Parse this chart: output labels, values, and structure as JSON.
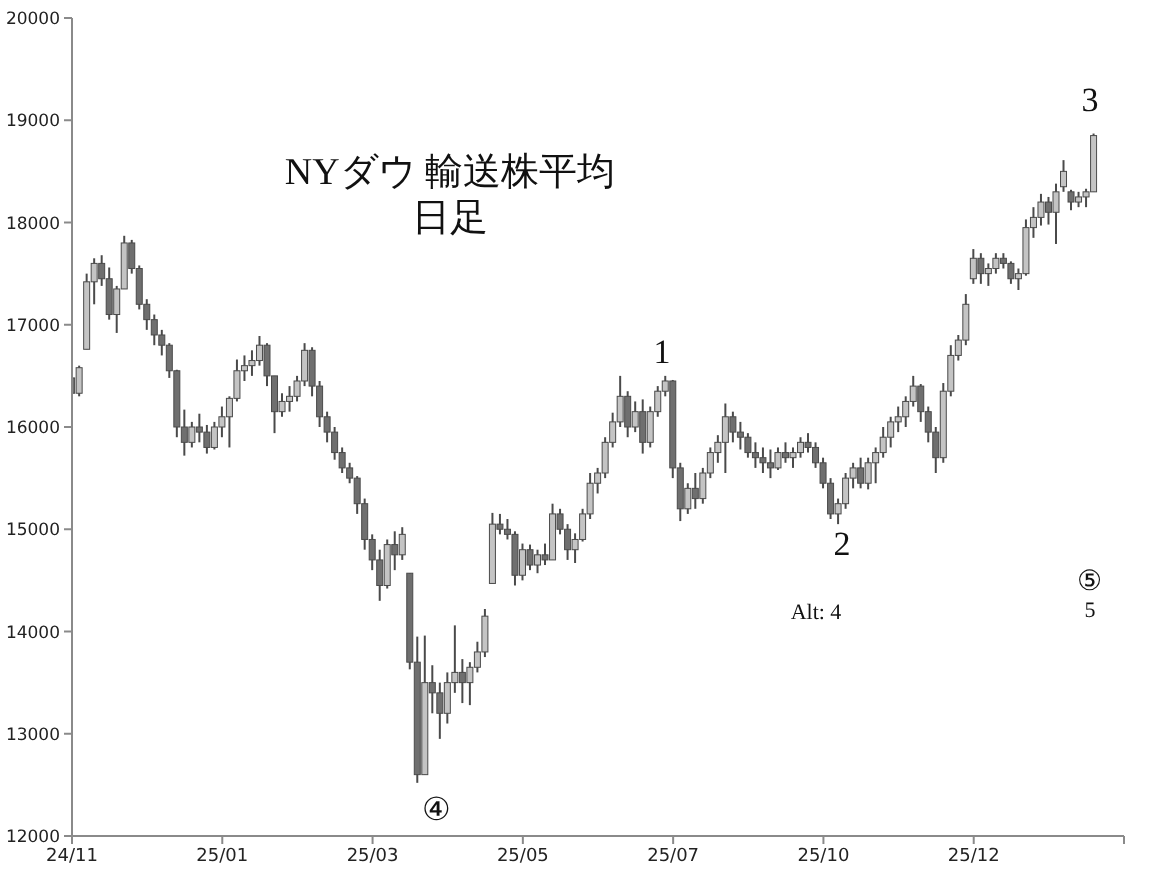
{
  "chart_data": {
    "type": "candlestick",
    "title": "NYダウ 輸送株平均",
    "subtitle": "日足",
    "categories": [
      "24/11",
      null,
      null,
      null,
      null,
      null,
      null,
      null,
      null,
      null,
      null,
      null,
      null,
      null,
      null,
      null,
      null,
      null,
      null,
      null,
      "25/01",
      null,
      null,
      null,
      null,
      null,
      null,
      null,
      null,
      null,
      null,
      null,
      null,
      null,
      null,
      null,
      null,
      null,
      null,
      null,
      "25/03",
      null,
      null,
      null,
      null,
      null,
      null,
      null,
      null,
      null,
      null,
      null,
      null,
      null,
      null,
      null,
      null,
      null,
      null,
      null,
      "25/05",
      null,
      null,
      null,
      null,
      null,
      null,
      null,
      null,
      null,
      null,
      null,
      null,
      null,
      null,
      null,
      null,
      null,
      null,
      null,
      "25/07",
      null,
      null,
      null,
      null,
      null,
      null,
      null,
      null,
      null,
      null,
      null,
      null,
      null,
      null,
      null,
      null,
      null,
      null,
      null,
      "25/10",
      null,
      null,
      null,
      null,
      null,
      null,
      null,
      null,
      null,
      null,
      null,
      null,
      null,
      null,
      null,
      null,
      null,
      null,
      null,
      "25/12",
      null,
      null,
      null,
      null,
      null,
      null,
      null,
      null,
      null,
      null,
      null,
      null,
      null,
      null,
      null,
      null,
      null,
      null,
      null,
      null
    ],
    "ohlc": [
      [
        16480,
        16560,
        16300,
        16330
      ],
      [
        16330,
        16600,
        16300,
        16580
      ],
      [
        16760,
        17500,
        16760,
        17420
      ],
      [
        17420,
        17650,
        17200,
        17600
      ],
      [
        17600,
        17680,
        17380,
        17450
      ],
      [
        17450,
        17560,
        17050,
        17100
      ],
      [
        17100,
        17380,
        16920,
        17350
      ],
      [
        17350,
        17870,
        17350,
        17800
      ],
      [
        17800,
        17830,
        17500,
        17550
      ],
      [
        17550,
        17580,
        17150,
        17200
      ],
      [
        17200,
        17250,
        16950,
        17050
      ],
      [
        17050,
        17100,
        16800,
        16900
      ],
      [
        16900,
        16950,
        16700,
        16800
      ],
      [
        16800,
        16820,
        16480,
        16550
      ],
      [
        16550,
        16560,
        15900,
        16000
      ],
      [
        16000,
        16170,
        15720,
        15850
      ],
      [
        15850,
        16050,
        15800,
        16000
      ],
      [
        16000,
        16130,
        15850,
        15950
      ],
      [
        15950,
        16020,
        15740,
        15800
      ],
      [
        15800,
        16050,
        15780,
        16000
      ],
      [
        16000,
        16200,
        15900,
        16100
      ],
      [
        16100,
        16300,
        15800,
        16280
      ],
      [
        16280,
        16660,
        16250,
        16550
      ],
      [
        16550,
        16700,
        16450,
        16600
      ],
      [
        16600,
        16750,
        16500,
        16650
      ],
      [
        16650,
        16890,
        16600,
        16800
      ],
      [
        16800,
        16820,
        16400,
        16500
      ],
      [
        16500,
        16500,
        15940,
        16150
      ],
      [
        16150,
        16330,
        16100,
        16250
      ],
      [
        16250,
        16400,
        16150,
        16300
      ],
      [
        16300,
        16500,
        16250,
        16450
      ],
      [
        16450,
        16820,
        16400,
        16750
      ],
      [
        16750,
        16780,
        16300,
        16400
      ],
      [
        16400,
        16450,
        16000,
        16100
      ],
      [
        16100,
        16150,
        15850,
        15950
      ],
      [
        15950,
        16000,
        15680,
        15750
      ],
      [
        15750,
        15800,
        15550,
        15600
      ],
      [
        15600,
        15650,
        15450,
        15500
      ],
      [
        15500,
        15520,
        15150,
        15250
      ],
      [
        15250,
        15300,
        14800,
        14900
      ],
      [
        14900,
        14950,
        14600,
        14700
      ],
      [
        14700,
        14800,
        14300,
        14450
      ],
      [
        14450,
        14900,
        14420,
        14850
      ],
      [
        14850,
        14980,
        14600,
        14750
      ],
      [
        14750,
        15020,
        14700,
        14950
      ],
      [
        14570,
        14570,
        13630,
        13700
      ],
      [
        13700,
        13950,
        12520,
        12600
      ],
      [
        12600,
        13960,
        12600,
        13500
      ],
      [
        13500,
        13670,
        13200,
        13400
      ],
      [
        13400,
        13500,
        12950,
        13200
      ],
      [
        13200,
        13600,
        13100,
        13500
      ],
      [
        13500,
        14060,
        13400,
        13600
      ],
      [
        13600,
        13730,
        13300,
        13500
      ],
      [
        13500,
        13700,
        13280,
        13650
      ],
      [
        13650,
        13900,
        13600,
        13800
      ],
      [
        13800,
        14220,
        13750,
        14150
      ],
      [
        14470,
        15160,
        14470,
        15050
      ],
      [
        15050,
        15150,
        14950,
        15000
      ],
      [
        15000,
        15100,
        14900,
        14950
      ],
      [
        14950,
        14980,
        14450,
        14550
      ],
      [
        14550,
        14860,
        14500,
        14800
      ],
      [
        14800,
        14850,
        14600,
        14650
      ],
      [
        14650,
        14800,
        14570,
        14750
      ],
      [
        14750,
        14860,
        14650,
        14700
      ],
      [
        14700,
        15250,
        14700,
        15150
      ],
      [
        15150,
        15200,
        14950,
        15000
      ],
      [
        15000,
        15050,
        14700,
        14800
      ],
      [
        14800,
        14960,
        14670,
        14900
      ],
      [
        14900,
        15200,
        14880,
        15150
      ],
      [
        15150,
        15550,
        15100,
        15450
      ],
      [
        15450,
        15600,
        15350,
        15550
      ],
      [
        15550,
        15900,
        15500,
        15850
      ],
      [
        15850,
        16140,
        15800,
        16050
      ],
      [
        16050,
        16500,
        16000,
        16300
      ],
      [
        16300,
        16350,
        15900,
        16000
      ],
      [
        16000,
        16250,
        15950,
        16150
      ],
      [
        16150,
        16270,
        15740,
        15850
      ],
      [
        15850,
        16200,
        15800,
        16150
      ],
      [
        16150,
        16400,
        16100,
        16350
      ],
      [
        16350,
        16500,
        16300,
        16450
      ],
      [
        16450,
        16460,
        15500,
        15600
      ],
      [
        15600,
        15650,
        15080,
        15200
      ],
      [
        15200,
        15450,
        15150,
        15400
      ],
      [
        15400,
        15550,
        15200,
        15300
      ],
      [
        15300,
        15600,
        15250,
        15550
      ],
      [
        15550,
        15800,
        15500,
        15750
      ],
      [
        15750,
        15920,
        15650,
        15850
      ],
      [
        15850,
        16230,
        15550,
        16100
      ],
      [
        16100,
        16150,
        15850,
        15950
      ],
      [
        15950,
        16050,
        15780,
        15900
      ],
      [
        15900,
        15940,
        15700,
        15750
      ],
      [
        15750,
        15850,
        15600,
        15700
      ],
      [
        15700,
        15800,
        15550,
        15650
      ],
      [
        15650,
        15780,
        15500,
        15600
      ],
      [
        15600,
        15800,
        15580,
        15750
      ],
      [
        15750,
        15850,
        15650,
        15700
      ],
      [
        15700,
        15800,
        15600,
        15750
      ],
      [
        15750,
        15900,
        15700,
        15850
      ],
      [
        15850,
        15940,
        15750,
        15800
      ],
      [
        15800,
        15850,
        15600,
        15650
      ],
      [
        15650,
        15700,
        15400,
        15450
      ],
      [
        15450,
        15500,
        15100,
        15150
      ],
      [
        15150,
        15300,
        15050,
        15250
      ],
      [
        15250,
        15550,
        15200,
        15500
      ],
      [
        15500,
        15650,
        15400,
        15600
      ],
      [
        15600,
        15700,
        15400,
        15450
      ],
      [
        15450,
        15700,
        15390,
        15650
      ],
      [
        15650,
        15800,
        15450,
        15750
      ],
      [
        15750,
        16000,
        15700,
        15900
      ],
      [
        15900,
        16100,
        15800,
        16050
      ],
      [
        16050,
        16200,
        15950,
        16100
      ],
      [
        16100,
        16300,
        16000,
        16250
      ],
      [
        16250,
        16500,
        16200,
        16400
      ],
      [
        16400,
        16420,
        16050,
        16150
      ],
      [
        16150,
        16200,
        15850,
        15950
      ],
      [
        15950,
        16000,
        15550,
        15700
      ],
      [
        15700,
        16430,
        15650,
        16350
      ],
      [
        16350,
        16800,
        16300,
        16700
      ],
      [
        16700,
        16900,
        16650,
        16850
      ],
      [
        16850,
        17300,
        16800,
        17200
      ],
      [
        17450,
        17740,
        17400,
        17650
      ],
      [
        17650,
        17700,
        17400,
        17500
      ],
      [
        17500,
        17600,
        17380,
        17550
      ],
      [
        17550,
        17700,
        17500,
        17650
      ],
      [
        17650,
        17700,
        17550,
        17600
      ],
      [
        17600,
        17620,
        17400,
        17450
      ],
      [
        17450,
        17550,
        17340,
        17500
      ],
      [
        17500,
        18030,
        17480,
        17950
      ],
      [
        17950,
        18150,
        17850,
        18050
      ],
      [
        18050,
        18280,
        17970,
        18200
      ],
      [
        18200,
        18250,
        17980,
        18100
      ],
      [
        18100,
        18380,
        17790,
        18300
      ],
      [
        18350,
        18610,
        18300,
        18500
      ],
      [
        18300,
        18320,
        18120,
        18200
      ],
      [
        18200,
        18300,
        18150,
        18250
      ],
      [
        18250,
        18330,
        18150,
        18300
      ],
      [
        18300,
        18870,
        18300,
        18850
      ],
      null,
      null,
      null,
      null
    ],
    "colors": [
      "#6f6f6f",
      "#c4c4c4",
      "#c4c4c4",
      "#c4c4c4",
      "#6f6f6f",
      "#6f6f6f",
      "#c4c4c4",
      "#c4c4c4",
      "#6f6f6f",
      "#6f6f6f",
      "#6f6f6f",
      "#6f6f6f",
      "#6f6f6f",
      "#6f6f6f",
      "#6f6f6f",
      "#6f6f6f",
      "#c4c4c4",
      "#6f6f6f",
      "#6f6f6f",
      "#c4c4c4",
      "#c4c4c4",
      "#c4c4c4",
      "#c4c4c4",
      "#c4c4c4",
      "#c4c4c4",
      "#c4c4c4",
      "#6f6f6f",
      "#6f6f6f",
      "#c4c4c4",
      "#c4c4c4",
      "#c4c4c4",
      "#c4c4c4",
      "#6f6f6f",
      "#6f6f6f",
      "#6f6f6f",
      "#6f6f6f",
      "#6f6f6f",
      "#6f6f6f",
      "#6f6f6f",
      "#6f6f6f",
      "#6f6f6f",
      "#6f6f6f",
      "#c4c4c4",
      "#6f6f6f",
      "#c4c4c4",
      "#6f6f6f",
      "#6f6f6f",
      "#c4c4c4",
      "#6f6f6f",
      "#6f6f6f",
      "#c4c4c4",
      "#c4c4c4",
      "#6f6f6f",
      "#c4c4c4",
      "#c4c4c4",
      "#c4c4c4",
      "#c4c4c4",
      "#6f6f6f",
      "#6f6f6f",
      "#6f6f6f",
      "#c4c4c4",
      "#6f6f6f",
      "#c4c4c4",
      "#6f6f6f",
      "#c4c4c4",
      "#6f6f6f",
      "#6f6f6f",
      "#c4c4c4",
      "#c4c4c4",
      "#c4c4c4",
      "#c4c4c4",
      "#c4c4c4",
      "#c4c4c4",
      "#c4c4c4",
      "#6f6f6f",
      "#c4c4c4",
      "#6f6f6f",
      "#c4c4c4",
      "#c4c4c4",
      "#c4c4c4",
      "#6f6f6f",
      "#6f6f6f",
      "#c4c4c4",
      "#6f6f6f",
      "#c4c4c4",
      "#c4c4c4",
      "#c4c4c4",
      "#c4c4c4",
      "#6f6f6f",
      "#6f6f6f",
      "#6f6f6f",
      "#6f6f6f",
      "#6f6f6f",
      "#6f6f6f",
      "#c4c4c4",
      "#6f6f6f",
      "#c4c4c4",
      "#c4c4c4",
      "#6f6f6f",
      "#6f6f6f",
      "#6f6f6f",
      "#6f6f6f",
      "#c4c4c4",
      "#c4c4c4",
      "#c4c4c4",
      "#6f6f6f",
      "#c4c4c4",
      "#c4c4c4",
      "#c4c4c4",
      "#c4c4c4",
      "#c4c4c4",
      "#c4c4c4",
      "#c4c4c4",
      "#6f6f6f",
      "#6f6f6f",
      "#6f6f6f",
      "#c4c4c4",
      "#c4c4c4",
      "#c4c4c4",
      "#c4c4c4",
      "#c4c4c4",
      "#6f6f6f",
      "#c4c4c4",
      "#c4c4c4",
      "#6f6f6f",
      "#6f6f6f",
      "#c4c4c4",
      "#c4c4c4",
      "#c4c4c4",
      "#c4c4c4",
      "#6f6f6f",
      "#c4c4c4",
      "#c4c4c4",
      "#6f6f6f",
      "#c4c4c4",
      "#c4c4c4",
      "#c4c4c4",
      null,
      null,
      null,
      null
    ],
    "ylim": [
      12000,
      20000
    ],
    "yticks": [
      12000,
      13000,
      14000,
      15000,
      16000,
      17000,
      18000,
      19000,
      20000
    ],
    "annotations": [
      "1",
      "2",
      "3",
      "④",
      "Alt: 4",
      "⑤",
      "5"
    ]
  }
}
